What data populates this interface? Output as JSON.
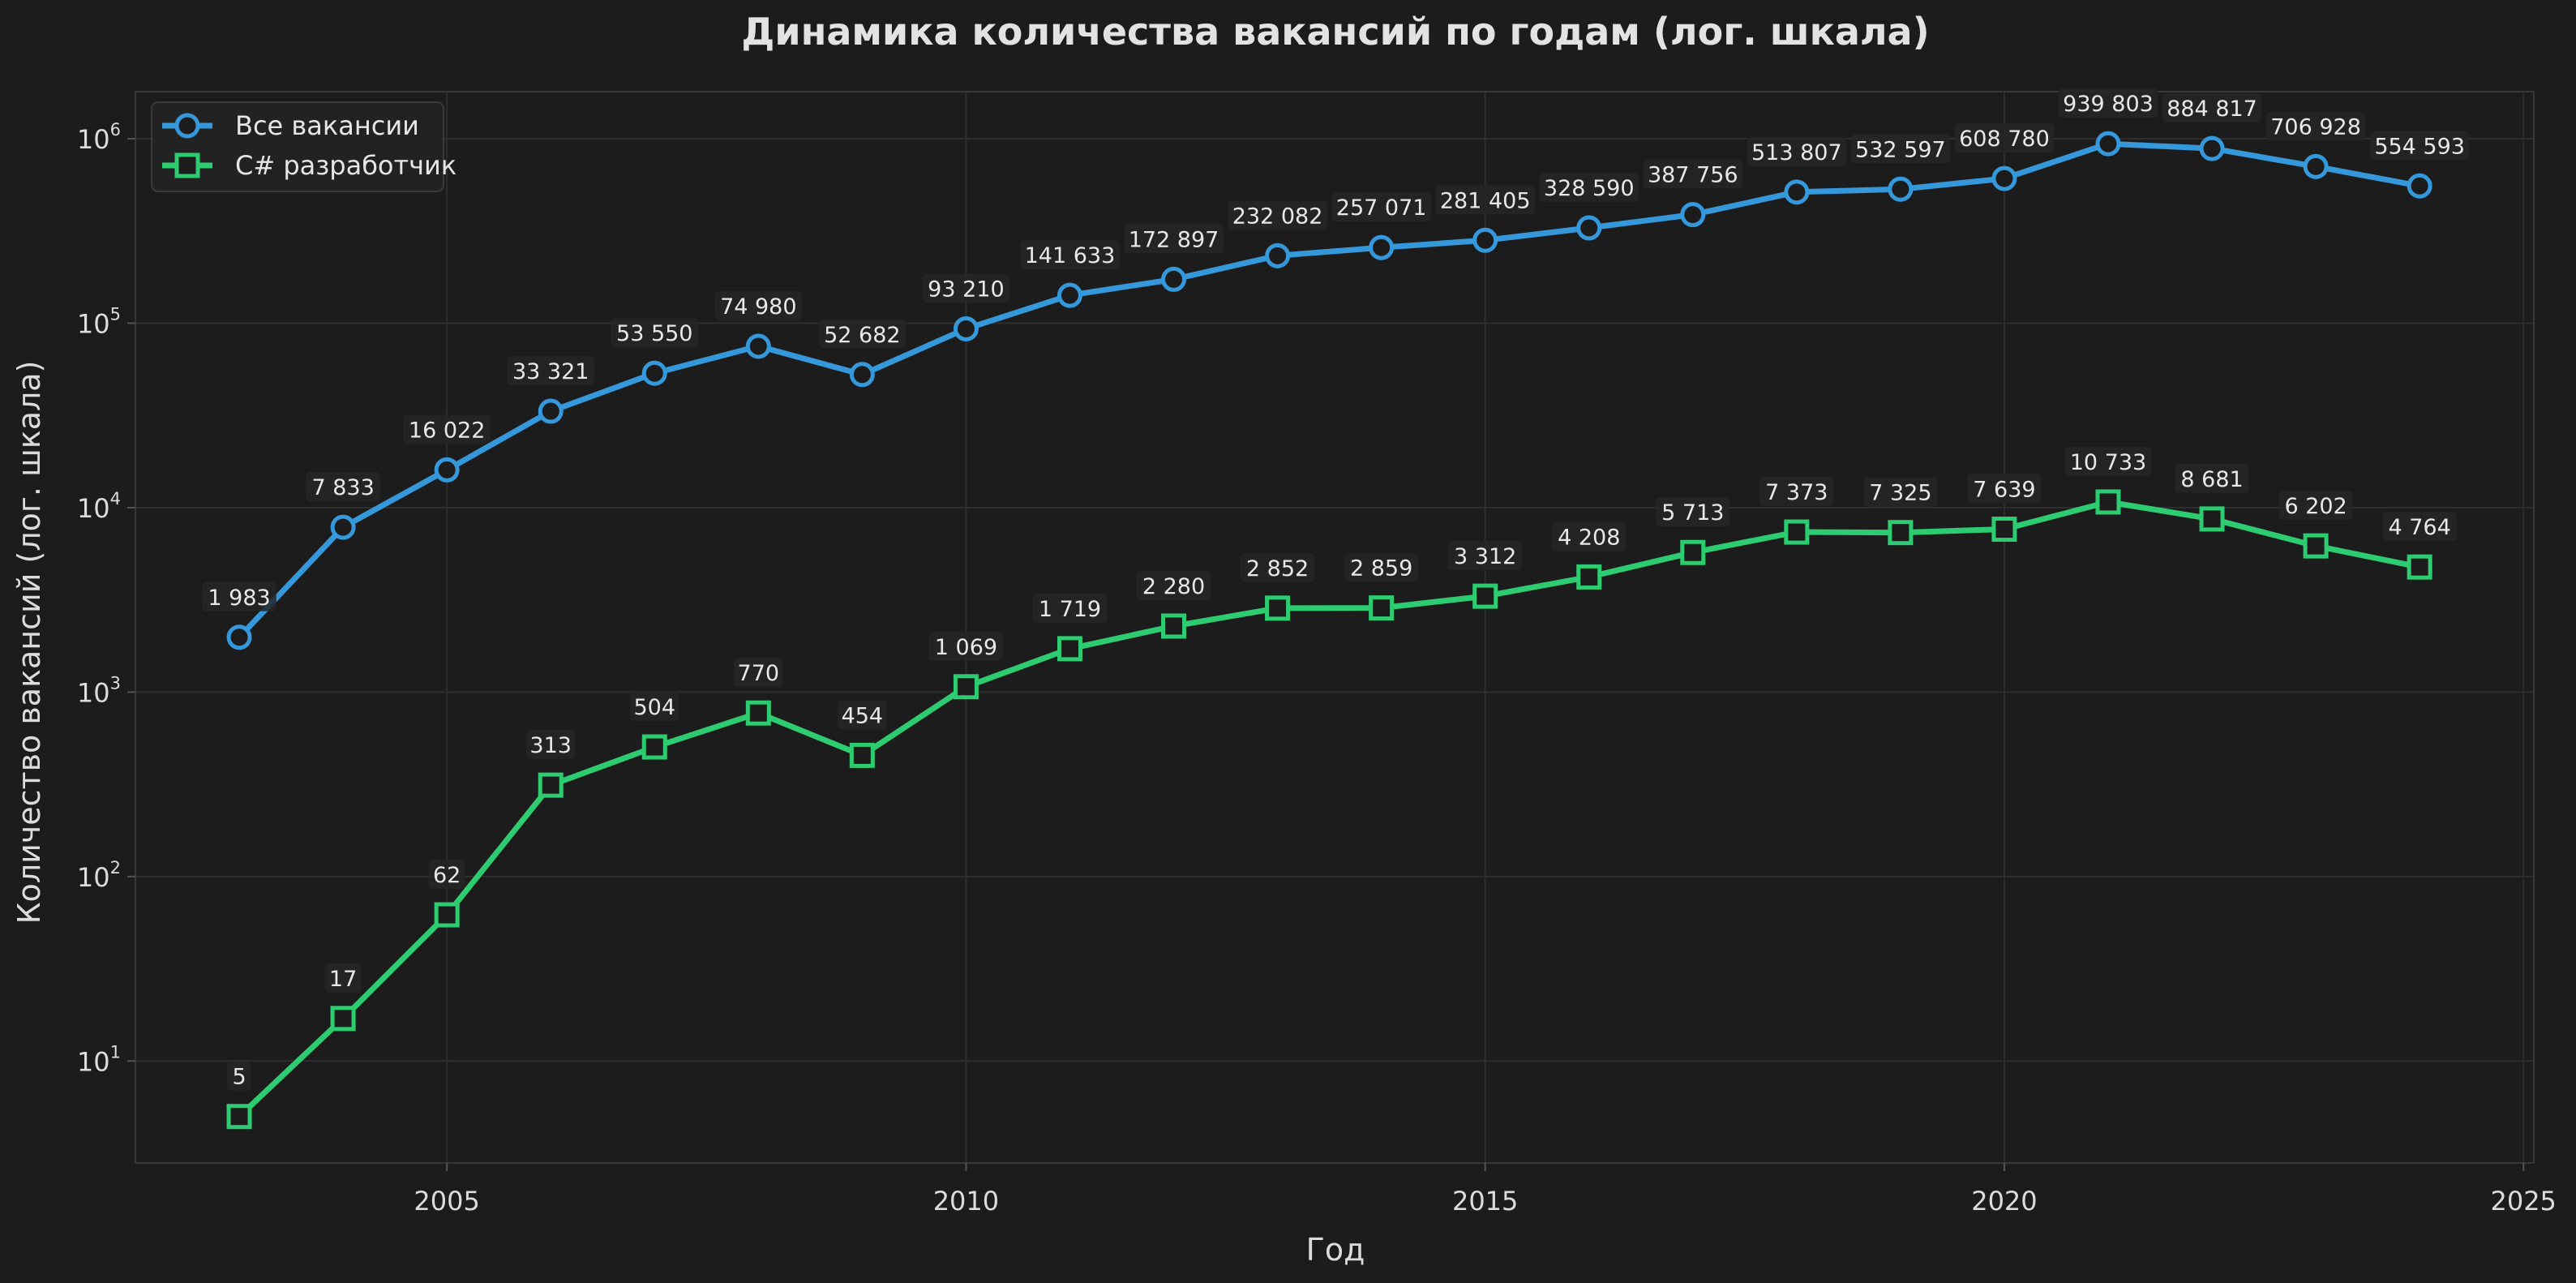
{
  "chart_data": {
    "type": "line",
    "title": "Динамика количества вакансий по годам (лог. шкала)",
    "xlabel": "Год",
    "ylabel": "Количество вакансий (лог. шкала)",
    "yscale": "log",
    "xlim": [
      2002,
      2025.1
    ],
    "ylim": [
      2.8,
      1800000
    ],
    "grid": true,
    "legend_position": "top-left",
    "x_ticks": [
      2005,
      2010,
      2015,
      2020,
      2025
    ],
    "y_ticks": [
      {
        "value": 10,
        "base": "10",
        "exp": "1"
      },
      {
        "value": 100,
        "base": "10",
        "exp": "2"
      },
      {
        "value": 1000,
        "base": "10",
        "exp": "3"
      },
      {
        "value": 10000,
        "base": "10",
        "exp": "4"
      },
      {
        "value": 100000,
        "base": "10",
        "exp": "5"
      },
      {
        "value": 1000000,
        "base": "10",
        "exp": "6"
      }
    ],
    "x": [
      2003,
      2004,
      2005,
      2006,
      2007,
      2008,
      2009,
      2010,
      2011,
      2012,
      2013,
      2014,
      2015,
      2016,
      2017,
      2018,
      2019,
      2020,
      2021,
      2022,
      2023,
      2024
    ],
    "series": [
      {
        "name": "Все вакансии",
        "color": "#3498db",
        "marker": "circle",
        "values": [
          1983,
          7833,
          16022,
          33321,
          53550,
          74980,
          52682,
          93210,
          141633,
          172897,
          232082,
          257071,
          281405,
          328590,
          387756,
          513807,
          532597,
          608780,
          939803,
          884817,
          706928,
          554593
        ],
        "labels": [
          "1 983",
          "7 833",
          "16 022",
          "33 321",
          "53 550",
          "74 980",
          "52 682",
          "93 210",
          "141 633",
          "172 897",
          "232 082",
          "257 071",
          "281 405",
          "328 590",
          "387 756",
          "513 807",
          "532 597",
          "608 780",
          "939 803",
          "884 817",
          "706 928",
          "554 593"
        ]
      },
      {
        "name": "C# разработчик",
        "color": "#2ecc71",
        "marker": "square",
        "values": [
          5,
          17,
          62,
          313,
          504,
          770,
          454,
          1069,
          1719,
          2280,
          2852,
          2859,
          3312,
          4208,
          5713,
          7373,
          7325,
          7639,
          10733,
          8681,
          6202,
          4764
        ],
        "labels": [
          "5",
          "17",
          "62",
          "313",
          "504",
          "770",
          "454",
          "1 069",
          "1 719",
          "2 280",
          "2 852",
          "2 859",
          "3 312",
          "4 208",
          "5 713",
          "7 373",
          "7 325",
          "7 639",
          "10 733",
          "8 681",
          "6 202",
          "4 764"
        ]
      }
    ],
    "colors": {
      "background": "#1c1c1c",
      "grid": "#2e2e2e",
      "axis": "#3a3a3a",
      "text": "#dcdcdc",
      "label_box": "#262626"
    }
  }
}
